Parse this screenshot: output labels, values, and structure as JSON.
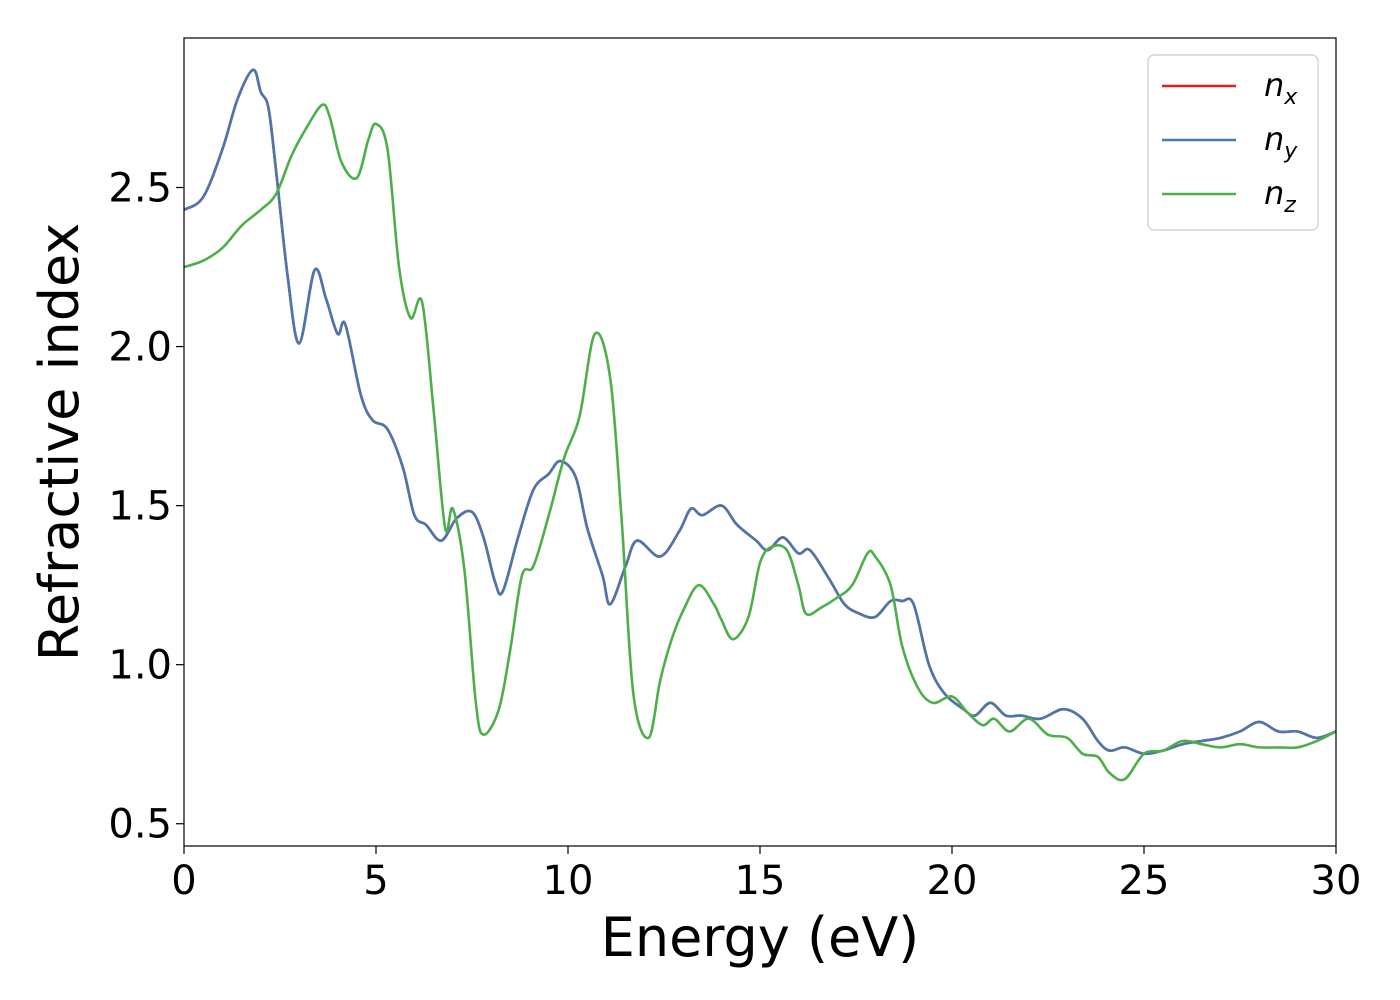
{
  "chart_data": {
    "type": "line",
    "xlabel": "Energy (eV)",
    "ylabel": "Refractive index",
    "xlim": [
      0,
      30
    ],
    "ylim": [
      0.43,
      2.97
    ],
    "xticks": [
      0,
      5,
      10,
      15,
      20,
      25,
      30
    ],
    "yticks": [
      0.5,
      1.0,
      1.5,
      2.0,
      2.5
    ],
    "xtick_labels": [
      "0",
      "5",
      "10",
      "15",
      "20",
      "25",
      "30"
    ],
    "ytick_labels": [
      "0.5",
      "1.0",
      "1.5",
      "2.0",
      "2.5"
    ],
    "grid": false,
    "legend_position": "top-right",
    "series": [
      {
        "name": "n_x",
        "legend_main": "n",
        "legend_sub": "x",
        "color": "#e41a1c",
        "x": [
          0,
          0.5,
          1.0,
          1.4,
          1.8,
          2.0,
          2.2,
          2.4,
          2.7,
          3.0,
          3.4,
          3.7,
          4.0,
          4.2,
          4.6,
          4.9,
          5.3,
          5.7,
          6.0,
          6.3,
          6.7,
          7.1,
          7.5,
          7.8,
          8.1,
          8.3,
          8.7,
          9.1,
          9.5,
          9.8,
          10.2,
          10.5,
          10.9,
          11.1,
          11.5,
          11.8,
          12.4,
          12.9,
          13.2,
          13.5,
          14.0,
          14.4,
          14.9,
          15.2,
          15.6,
          16.0,
          16.3,
          16.8,
          17.2,
          17.6,
          18.0,
          18.4,
          18.7,
          19.0,
          19.4,
          19.8,
          20.3,
          20.6,
          21.0,
          21.4,
          21.8,
          22.3,
          22.9,
          23.4,
          23.8,
          24.1,
          24.5,
          25.0,
          25.5,
          26.0,
          26.5,
          27.0,
          27.5,
          28.0,
          28.5,
          29.0,
          29.5,
          30.0
        ],
        "y": [
          2.43,
          2.47,
          2.62,
          2.78,
          2.87,
          2.8,
          2.75,
          2.55,
          2.22,
          2.01,
          2.24,
          2.15,
          2.04,
          2.07,
          1.85,
          1.77,
          1.74,
          1.62,
          1.47,
          1.44,
          1.39,
          1.46,
          1.48,
          1.4,
          1.26,
          1.23,
          1.4,
          1.55,
          1.6,
          1.64,
          1.59,
          1.43,
          1.28,
          1.19,
          1.31,
          1.39,
          1.34,
          1.42,
          1.49,
          1.47,
          1.5,
          1.44,
          1.39,
          1.36,
          1.4,
          1.35,
          1.36,
          1.27,
          1.19,
          1.16,
          1.15,
          1.2,
          1.2,
          1.19,
          1.0,
          0.91,
          0.86,
          0.84,
          0.88,
          0.84,
          0.84,
          0.83,
          0.86,
          0.83,
          0.76,
          0.73,
          0.74,
          0.72,
          0.73,
          0.75,
          0.76,
          0.77,
          0.79,
          0.82,
          0.79,
          0.79,
          0.77,
          0.79
        ]
      },
      {
        "name": "n_y",
        "legend_main": "n",
        "legend_sub": "y",
        "color": "#4a77b0",
        "x": [
          0,
          0.5,
          1.0,
          1.4,
          1.8,
          2.0,
          2.2,
          2.4,
          2.7,
          3.0,
          3.4,
          3.7,
          4.0,
          4.2,
          4.6,
          4.9,
          5.3,
          5.7,
          6.0,
          6.3,
          6.7,
          7.1,
          7.5,
          7.8,
          8.1,
          8.3,
          8.7,
          9.1,
          9.5,
          9.8,
          10.2,
          10.5,
          10.9,
          11.1,
          11.5,
          11.8,
          12.4,
          12.9,
          13.2,
          13.5,
          14.0,
          14.4,
          14.9,
          15.2,
          15.6,
          16.0,
          16.3,
          16.8,
          17.2,
          17.6,
          18.0,
          18.4,
          18.7,
          19.0,
          19.4,
          19.8,
          20.3,
          20.6,
          21.0,
          21.4,
          21.8,
          22.3,
          22.9,
          23.4,
          23.8,
          24.1,
          24.5,
          25.0,
          25.5,
          26.0,
          26.5,
          27.0,
          27.5,
          28.0,
          28.5,
          29.0,
          29.5,
          30.0
        ],
        "y": [
          2.43,
          2.47,
          2.62,
          2.78,
          2.87,
          2.8,
          2.75,
          2.55,
          2.22,
          2.01,
          2.24,
          2.15,
          2.04,
          2.07,
          1.85,
          1.77,
          1.74,
          1.62,
          1.47,
          1.44,
          1.39,
          1.46,
          1.48,
          1.4,
          1.26,
          1.23,
          1.4,
          1.55,
          1.6,
          1.64,
          1.59,
          1.43,
          1.28,
          1.19,
          1.31,
          1.39,
          1.34,
          1.42,
          1.49,
          1.47,
          1.5,
          1.44,
          1.39,
          1.36,
          1.4,
          1.35,
          1.36,
          1.27,
          1.19,
          1.16,
          1.15,
          1.2,
          1.2,
          1.19,
          1.0,
          0.91,
          0.86,
          0.84,
          0.88,
          0.84,
          0.84,
          0.83,
          0.86,
          0.83,
          0.76,
          0.73,
          0.74,
          0.72,
          0.73,
          0.75,
          0.76,
          0.77,
          0.79,
          0.82,
          0.79,
          0.79,
          0.77,
          0.79
        ]
      },
      {
        "name": "n_z",
        "legend_main": "n",
        "legend_sub": "z",
        "color": "#4daf4a",
        "x": [
          0,
          0.5,
          1.0,
          1.5,
          2.0,
          2.4,
          2.8,
          3.2,
          3.6,
          3.8,
          4.1,
          4.5,
          4.8,
          5.0,
          5.3,
          5.6,
          5.9,
          6.2,
          6.5,
          6.8,
          7.0,
          7.3,
          7.6,
          7.8,
          8.2,
          8.5,
          8.8,
          9.1,
          9.5,
          9.9,
          10.3,
          10.7,
          11.1,
          11.4,
          11.7,
          12.1,
          12.4,
          12.7,
          13.0,
          13.4,
          13.8,
          14.0,
          14.3,
          14.7,
          15.0,
          15.3,
          15.7,
          16.0,
          16.2,
          16.6,
          17.0,
          17.4,
          17.8,
          18.0,
          18.4,
          18.7,
          19.1,
          19.5,
          20.0,
          20.4,
          20.8,
          21.1,
          21.5,
          22.0,
          22.5,
          23.0,
          23.4,
          23.8,
          24.1,
          24.5,
          25.0,
          25.5,
          26.0,
          26.5,
          27.0,
          27.5,
          28.0,
          28.5,
          29.0,
          29.5,
          30.0
        ],
        "y": [
          2.25,
          2.27,
          2.31,
          2.38,
          2.43,
          2.48,
          2.6,
          2.69,
          2.76,
          2.72,
          2.58,
          2.53,
          2.65,
          2.7,
          2.62,
          2.25,
          2.09,
          2.14,
          1.8,
          1.43,
          1.49,
          1.3,
          0.88,
          0.78,
          0.86,
          1.05,
          1.28,
          1.31,
          1.47,
          1.65,
          1.78,
          2.04,
          1.9,
          1.45,
          0.91,
          0.77,
          0.95,
          1.08,
          1.17,
          1.25,
          1.19,
          1.14,
          1.08,
          1.15,
          1.32,
          1.37,
          1.36,
          1.25,
          1.16,
          1.18,
          1.21,
          1.25,
          1.35,
          1.34,
          1.25,
          1.06,
          0.93,
          0.88,
          0.9,
          0.85,
          0.81,
          0.83,
          0.79,
          0.83,
          0.78,
          0.77,
          0.72,
          0.71,
          0.66,
          0.64,
          0.72,
          0.73,
          0.76,
          0.75,
          0.74,
          0.75,
          0.74,
          0.74,
          0.74,
          0.76,
          0.79
        ]
      }
    ]
  }
}
